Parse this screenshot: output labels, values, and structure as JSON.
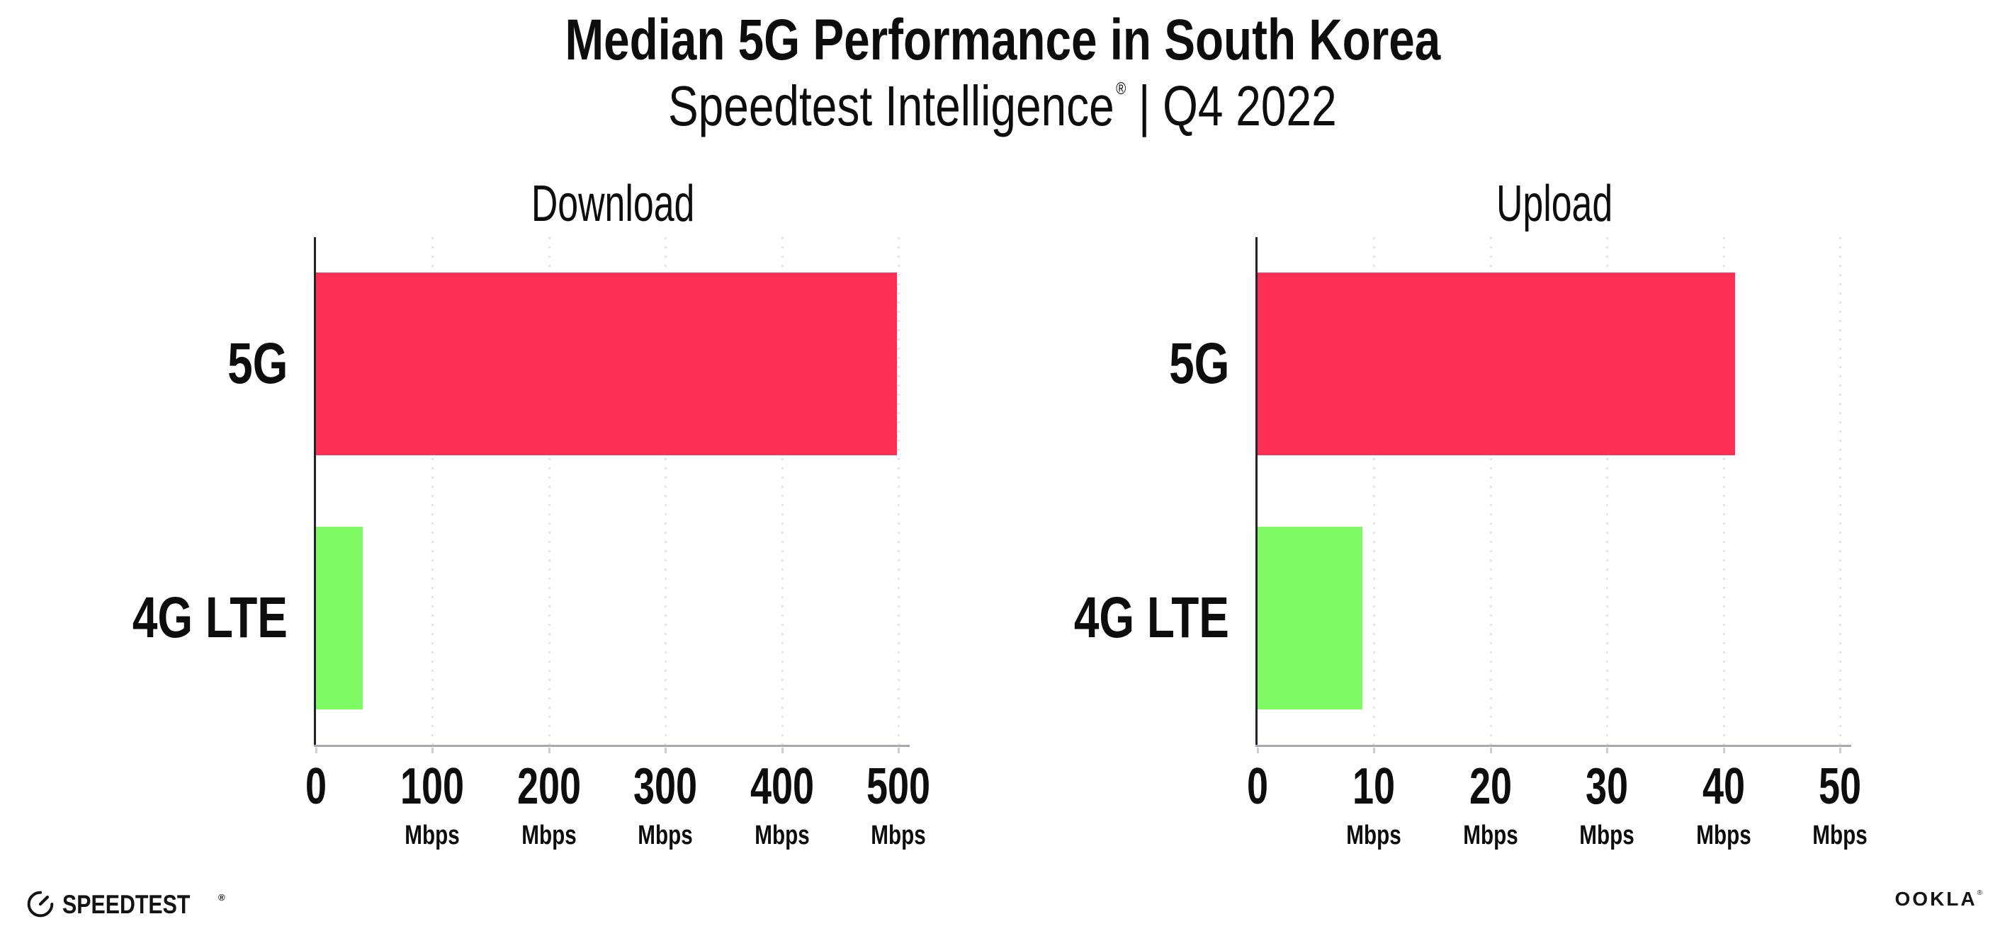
{
  "header": {
    "title": "Median 5G Performance in South Korea",
    "subtitle": {
      "brand": "Speedtest Intelligence",
      "registered_mark": "®",
      "divider": "|",
      "period": "Q4 2022"
    }
  },
  "chart_data": [
    {
      "type": "bar",
      "orientation": "horizontal",
      "title": "Download",
      "categories": [
        "5G",
        "4G LTE"
      ],
      "values": [
        499,
        40
      ],
      "value_unit": "Mbps",
      "xlim": [
        0,
        500
      ],
      "xticks": [
        0,
        100,
        200,
        300,
        400,
        500
      ],
      "xtick_unit": "Mbps",
      "bar_colors": [
        "#ff2e55",
        "#7dfa64"
      ],
      "grid": "vertical-dotted",
      "legend": "none"
    },
    {
      "type": "bar",
      "orientation": "horizontal",
      "title": "Upload",
      "categories": [
        "5G",
        "4G LTE"
      ],
      "values": [
        41,
        9
      ],
      "value_unit": "Mbps",
      "xlim": [
        0,
        50
      ],
      "xticks": [
        0,
        10,
        20,
        30,
        40,
        50
      ],
      "xtick_unit": "Mbps",
      "bar_colors": [
        "#ff2e55",
        "#7dfa64"
      ],
      "grid": "vertical-dotted",
      "legend": "none"
    }
  ],
  "footer": {
    "speedtest_wordmark": "SPEEDTEST",
    "speedtest_trademark": "®",
    "ookla_wordmark": "OOKLA",
    "ookla_trademark": "®"
  },
  "style": {
    "bar_color_5g": "#ff2e55",
    "bar_color_4g_lte": "#7dfa64",
    "grid_color": "#e4e4ec",
    "y_axis_color": "#23232d",
    "x_axis_color": "#a9a9af",
    "text_color": "#0d0d0d"
  }
}
